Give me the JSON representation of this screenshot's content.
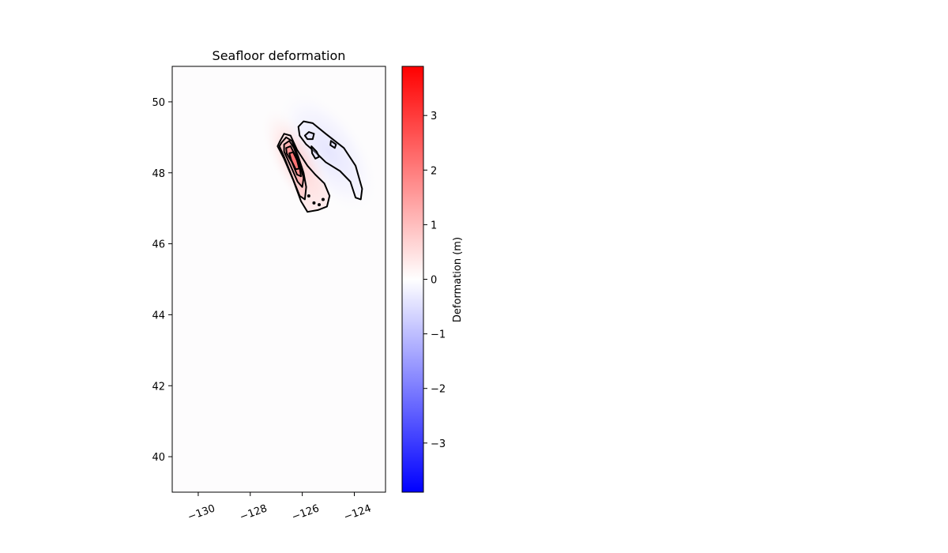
{
  "chart_data": {
    "type": "heatmap",
    "title": "Seafloor deformation",
    "xlabel": "",
    "ylabel": "",
    "xlim": [
      -131,
      -122.8
    ],
    "ylim": [
      39,
      51
    ],
    "xticks": [
      -130,
      -128,
      -126,
      -124
    ],
    "xtick_labels": [
      "−130",
      "−128",
      "−126",
      "−124"
    ],
    "yticks": [
      40,
      42,
      44,
      46,
      48,
      50
    ],
    "ytick_labels": [
      "40",
      "42",
      "44",
      "46",
      "48",
      "50"
    ],
    "colorbar": {
      "label": "Deformation (m)",
      "range": [
        -3.9,
        3.9
      ],
      "ticks": [
        -3,
        -2,
        -1,
        0,
        1,
        2,
        3
      ],
      "tick_labels": [
        "−3",
        "−2",
        "−1",
        "0",
        "1",
        "2",
        "3"
      ],
      "colormap": "bwr",
      "color_min": "#0000ff",
      "color_mid": "#ffffff",
      "color_max": "#ff0000"
    },
    "uplift_peak": {
      "lon": -126.2,
      "lat": 48.3,
      "value": 3.5
    },
    "subsidence_peak": {
      "lon": -125.0,
      "lat": 48.6,
      "value": -0.5
    },
    "contours": [
      {
        "level": 0.5,
        "points": [
          [
            -126.85,
            48.9
          ],
          [
            -126.7,
            49.1
          ],
          [
            -126.45,
            49.05
          ],
          [
            -126.2,
            48.65
          ],
          [
            -125.8,
            48.2
          ],
          [
            -125.5,
            47.95
          ],
          [
            -125.15,
            47.7
          ],
          [
            -124.95,
            47.35
          ],
          [
            -125.05,
            47.05
          ],
          [
            -125.4,
            46.95
          ],
          [
            -125.8,
            46.9
          ],
          [
            -126.05,
            47.2
          ],
          [
            -126.35,
            47.8
          ],
          [
            -126.7,
            48.4
          ],
          [
            -126.95,
            48.75
          ]
        ]
      },
      {
        "level": 1.0,
        "points": [
          [
            -126.8,
            48.85
          ],
          [
            -126.62,
            49.0
          ],
          [
            -126.4,
            48.9
          ],
          [
            -126.15,
            48.45
          ],
          [
            -125.95,
            48.0
          ],
          [
            -125.85,
            47.6
          ],
          [
            -125.9,
            47.25
          ],
          [
            -126.1,
            47.35
          ],
          [
            -126.4,
            47.9
          ],
          [
            -126.7,
            48.45
          ],
          [
            -126.88,
            48.75
          ]
        ]
      },
      {
        "level": 1.5,
        "points": [
          [
            -126.7,
            48.8
          ],
          [
            -126.5,
            48.9
          ],
          [
            -126.32,
            48.7
          ],
          [
            -126.1,
            48.25
          ],
          [
            -125.95,
            47.85
          ],
          [
            -126.0,
            47.6
          ],
          [
            -126.18,
            47.75
          ],
          [
            -126.45,
            48.2
          ],
          [
            -126.7,
            48.6
          ]
        ]
      },
      {
        "level": 2.0,
        "points": [
          [
            -126.62,
            48.7
          ],
          [
            -126.45,
            48.75
          ],
          [
            -126.28,
            48.5
          ],
          [
            -126.1,
            48.15
          ],
          [
            -126.05,
            47.9
          ],
          [
            -126.2,
            47.95
          ],
          [
            -126.4,
            48.3
          ],
          [
            -126.6,
            48.55
          ]
        ]
      },
      {
        "level": 2.5,
        "points": [
          [
            -126.5,
            48.55
          ],
          [
            -126.35,
            48.58
          ],
          [
            -126.2,
            48.35
          ],
          [
            -126.12,
            48.12
          ],
          [
            -126.25,
            48.1
          ],
          [
            -126.42,
            48.35
          ]
        ]
      },
      {
        "level": -0.15,
        "points": [
          [
            -126.15,
            49.3
          ],
          [
            -125.95,
            49.45
          ],
          [
            -125.6,
            49.4
          ],
          [
            -125.1,
            49.1
          ],
          [
            -124.4,
            48.7
          ],
          [
            -123.95,
            48.2
          ],
          [
            -123.7,
            47.55
          ],
          [
            -123.75,
            47.25
          ],
          [
            -123.95,
            47.3
          ],
          [
            -124.15,
            47.75
          ],
          [
            -124.55,
            48.05
          ],
          [
            -125.1,
            48.3
          ],
          [
            -125.45,
            48.55
          ],
          [
            -125.85,
            48.8
          ],
          [
            -126.1,
            49.05
          ]
        ]
      },
      {
        "level": -0.3,
        "points": [
          [
            -125.9,
            49.05
          ],
          [
            -125.75,
            49.15
          ],
          [
            -125.55,
            49.1
          ],
          [
            -125.6,
            48.95
          ],
          [
            -125.8,
            48.95
          ]
        ]
      },
      {
        "level": -0.3,
        "points": [
          [
            -125.65,
            48.75
          ],
          [
            -125.45,
            48.6
          ],
          [
            -125.35,
            48.45
          ],
          [
            -125.5,
            48.4
          ],
          [
            -125.62,
            48.55
          ]
        ]
      },
      {
        "level": -0.3,
        "points": [
          [
            -124.9,
            48.9
          ],
          [
            -124.7,
            48.8
          ],
          [
            -124.75,
            48.7
          ],
          [
            -124.92,
            48.78
          ]
        ]
      }
    ]
  }
}
